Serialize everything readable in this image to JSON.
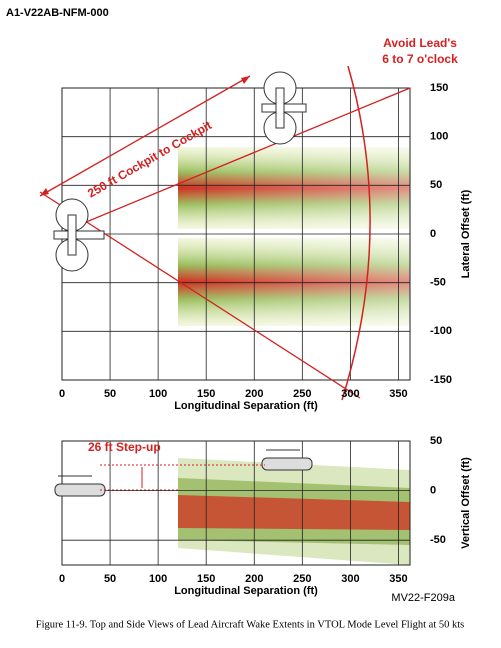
{
  "header": {
    "doc_id": "A1-V22AB-NFM-000"
  },
  "figure": {
    "panels": [
      {
        "annotations": [
          "Avoid Lead's",
          "6 to 7 o'clock",
          "250 ft Cockpit to Cockpit"
        ],
        "xlabel": "Longitudinal Separation (ft)",
        "ylabel": "Lateral Offset (ft)",
        "xlim": [
          0,
          362
        ],
        "ylim": [
          -150,
          150
        ],
        "xticks": [
          0,
          50,
          100,
          150,
          200,
          250,
          300,
          350
        ],
        "yticks": [
          -150,
          -100,
          -50,
          0,
          50,
          100,
          150
        ]
      },
      {
        "annotations": [
          "26 ft Step-up"
        ],
        "xlabel": "Longitudinal Separation (ft)",
        "ylabel": "Vertical Offset (ft)",
        "xlim": [
          0,
          362
        ],
        "ylim": [
          -75,
          50
        ],
        "xticks": [
          0,
          50,
          100,
          150,
          200,
          250,
          300,
          350
        ],
        "yticks": [
          -50,
          0,
          50
        ]
      }
    ],
    "figure_id": "MV22-F209a",
    "caption": "Figure 11-9.  Top and Side Views of Lead Aircraft Wake Extents in VTOL Mode Level Flight at 50 kts"
  }
}
